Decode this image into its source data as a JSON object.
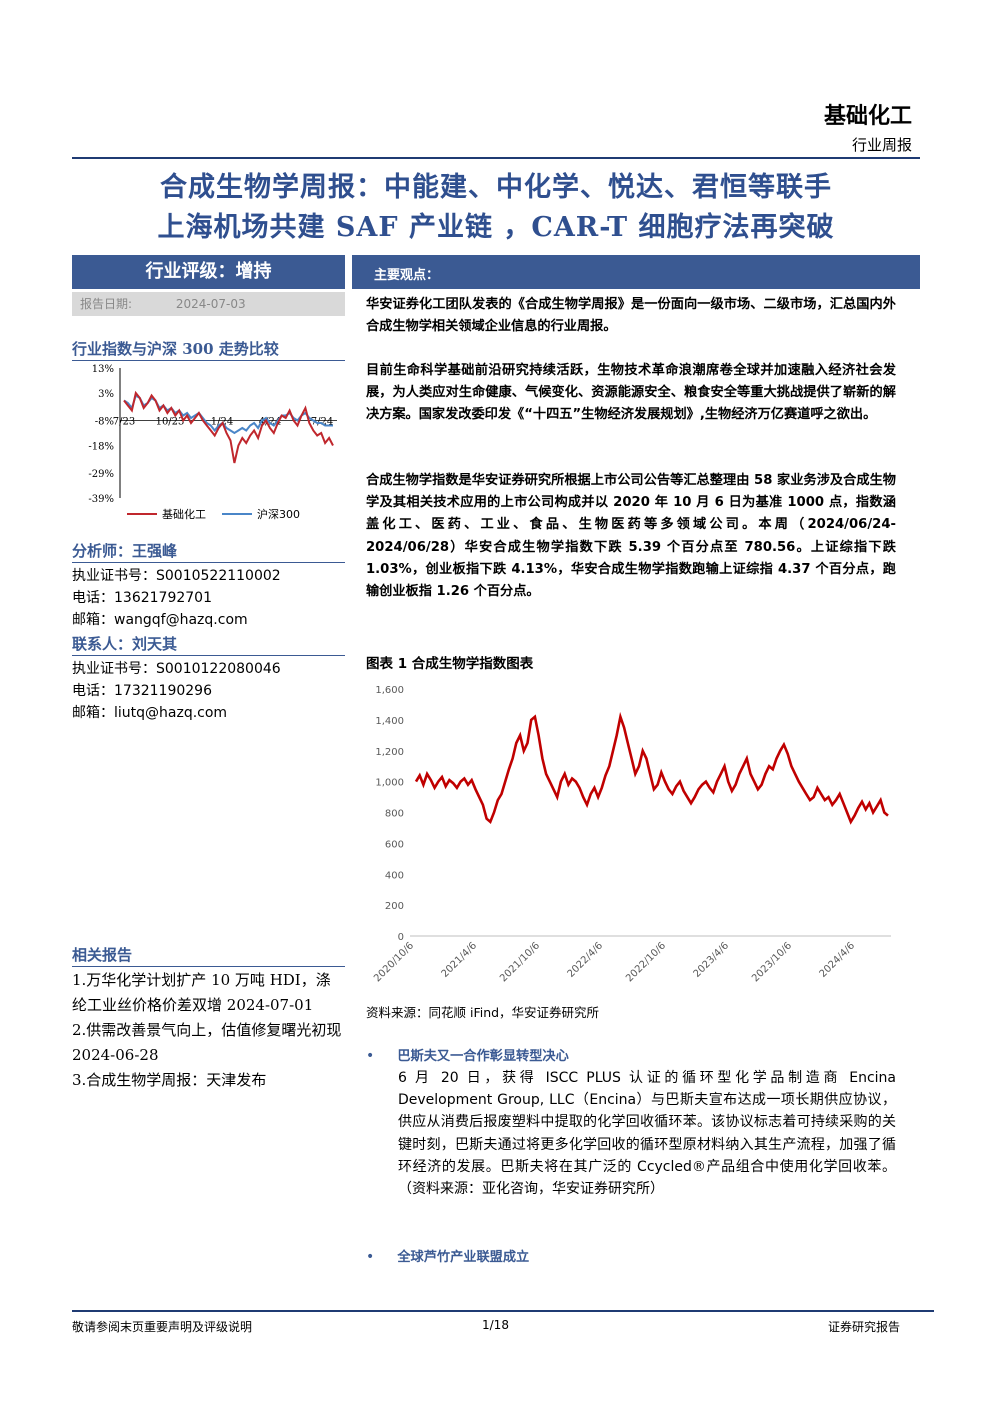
{
  "header": {
    "category": "基础化工",
    "report_type": "行业周报"
  },
  "title": {
    "line1": "合成生物学周报：中能建、中化学、悦达、君恒等联手",
    "line2": "上海机场共建 SAF 产业链 ，CAR-T 细胞疗法再突破"
  },
  "rating": {
    "label": "行业评级：增持",
    "date_label": "报告日期:",
    "date": "2024-07-03"
  },
  "index_chart": {
    "section_title": "行业指数与沪深 300 走势比较",
    "y_ticks": [
      "13%",
      "3%",
      "-8%",
      "-18%",
      "-29%",
      "-39%"
    ],
    "x_ticks": [
      "7/23",
      "10/23",
      "1/24",
      "4/24",
      "7/24"
    ],
    "legend": [
      "基础化工",
      "沪深300"
    ],
    "colors": {
      "industry": "#c0272d",
      "csi300": "#4a86c8"
    },
    "series_industry": [
      0,
      -2,
      -4,
      3,
      1,
      -3,
      -1,
      2,
      0,
      -4,
      -2,
      -5,
      -3,
      -6,
      -4,
      -8,
      -6,
      -9,
      -7,
      -5,
      -8,
      -10,
      -12,
      -14,
      -11,
      -9,
      -13,
      -16,
      -25,
      -18,
      -15,
      -17,
      -14,
      -12,
      -15,
      -10,
      -8,
      -11,
      -13,
      -9,
      -6,
      -7,
      -4,
      -8,
      -10,
      -6,
      -3,
      -9,
      -12,
      -14,
      -13,
      -17,
      -15,
      -18
    ],
    "series_csi300": [
      0,
      -1,
      -3,
      2,
      1,
      -2,
      -1,
      1,
      0,
      -3,
      -2,
      -4,
      -3,
      -5,
      -4,
      -6,
      -5,
      -7,
      -6,
      -5,
      -7,
      -9,
      -10,
      -12,
      -10,
      -9,
      -11,
      -12,
      -13,
      -12,
      -11,
      -12,
      -10,
      -9,
      -11,
      -8,
      -7,
      -9,
      -10,
      -8,
      -6,
      -6,
      -5,
      -7,
      -8,
      -6,
      -5,
      -7,
      -8,
      -9,
      -9,
      -10,
      -10,
      -10
    ]
  },
  "analyst": {
    "title": "分析师：王强峰",
    "license_label": "执业证书号：",
    "license": "S0010522110002",
    "phone_label": "电话：",
    "phone": "13621792701",
    "email_label": "邮箱：",
    "email": "wangqf@hazq.com"
  },
  "contact": {
    "title": "联系人：刘天其",
    "license_label": "执业证书号：",
    "license": "S0010122080046",
    "phone_label": "电话：",
    "phone": "17321190296",
    "email_label": "邮箱：",
    "email": "liutq@hazq.com"
  },
  "main_view": {
    "label": "主要观点：",
    "p1": "华安证券化工团队发表的《合成生物学周报》是一份面向一级市场、二级市场，汇总国内外合成生物学相关领域企业信息的行业周报。",
    "p2": "目前生命科学基础前沿研究持续活跃，生物技术革命浪潮席卷全球并加速融入经济社会发展，为人类应对生命健康、气候变化、资源能源安全、粮食安全等重大挑战提供了崭新的解决方案。国家发改委印发《“十四五”生物经济发展规划》,生物经济万亿赛道呼之欲出。",
    "p3": "合成生物学指数是华安证券研究所根据上市公司公告等汇总整理由 58 家业务涉及合成生物学及其相关技术应用的上市公司构成并以 2020 年 10 月 6 日为基准 1000 点，指数涵盖化工、医药、工业、食品、生物医药等多领域公司。本周（2024/06/24-2024/06/28）华安合成生物学指数下跌 5.39 个百分点至 780.56。上证综指下跌 1.03%，创业板指下跌 4.13%，华安合成生物学指数跑输上证综指 4.37 个百分点，跑输创业板指 1.26 个百分点。"
  },
  "figure": {
    "title": "图表 1 合成生物学指数图表",
    "source": "资料来源：同花顺 iFind，华安证券研究所"
  },
  "chart_data": {
    "type": "line",
    "title": "",
    "ylim": [
      0,
      1600
    ],
    "y_ticks": [
      "0",
      "200",
      "400",
      "600",
      "800",
      "1,000",
      "1,200",
      "1,400",
      "1,600"
    ],
    "x_ticks": [
      "2020/10/6",
      "2021/4/6",
      "2021/10/6",
      "2022/4/6",
      "2022/10/6",
      "2023/4/6",
      "2023/10/6",
      "2024/4/6"
    ],
    "color": "#c00000",
    "values": [
      1000,
      1040,
      980,
      1050,
      1010,
      960,
      1000,
      1030,
      970,
      1010,
      990,
      960,
      1000,
      1020,
      980,
      1010,
      950,
      900,
      850,
      760,
      740,
      800,
      880,
      920,
      1000,
      1080,
      1150,
      1250,
      1300,
      1200,
      1250,
      1400,
      1420,
      1300,
      1150,
      1050,
      1000,
      950,
      900,
      1000,
      1050,
      980,
      1020,
      1000,
      960,
      900,
      850,
      920,
      960,
      900,
      960,
      1040,
      1100,
      1200,
      1300,
      1420,
      1350,
      1250,
      1150,
      1050,
      1100,
      1200,
      1150,
      1050,
      950,
      980,
      1060,
      1000,
      950,
      920,
      970,
      1000,
      940,
      900,
      860,
      900,
      950,
      980,
      1000,
      960,
      930,
      1000,
      1050,
      1100,
      1000,
      940,
      980,
      1050,
      1100,
      1150,
      1050,
      1000,
      950,
      980,
      1050,
      1100,
      1080,
      1150,
      1200,
      1240,
      1180,
      1100,
      1050,
      1000,
      960,
      920,
      880,
      900,
      960,
      920,
      880,
      900,
      850,
      880,
      920,
      860,
      800,
      740,
      780,
      830,
      870,
      820,
      860,
      800,
      840,
      880,
      800,
      780
    ]
  },
  "bullets": [
    {
      "title": "巴斯夫又一合作彰显转型决心",
      "body": "6 月 20 日，获得 ISCC PLUS 认证的循环型化学品制造商 Encina Development Group, LLC（Encina）与巴斯夫宣布达成一项长期供应协议，供应从消费后报废塑料中提取的化学回收循环苯。该协议标志着可持续采购的关键时刻，巴斯夫通过将更多化学回收的循环型原材料纳入其生产流程，加强了循环经济的发展。巴斯夫将在其广泛的 Ccycled®产品组合中使用化学回收苯。（资料来源：亚化咨询，华安证券研究所）"
    },
    {
      "title": "全球芦竹产业联盟成立",
      "body": ""
    }
  ],
  "related": {
    "title": "相关报告",
    "items": [
      "1.万华化学计划扩产 10 万吨 HDI，涤纶工业丝价格价差双增 2024-07-01",
      "2.供需改善景气向上，估值修复曙光初现　2024-06-28",
      "3.合成生物学周报：天津发布"
    ]
  },
  "footer": {
    "left": "敬请参阅末页重要声明及评级说明",
    "page": "1/18",
    "right": "证券研究报告"
  }
}
